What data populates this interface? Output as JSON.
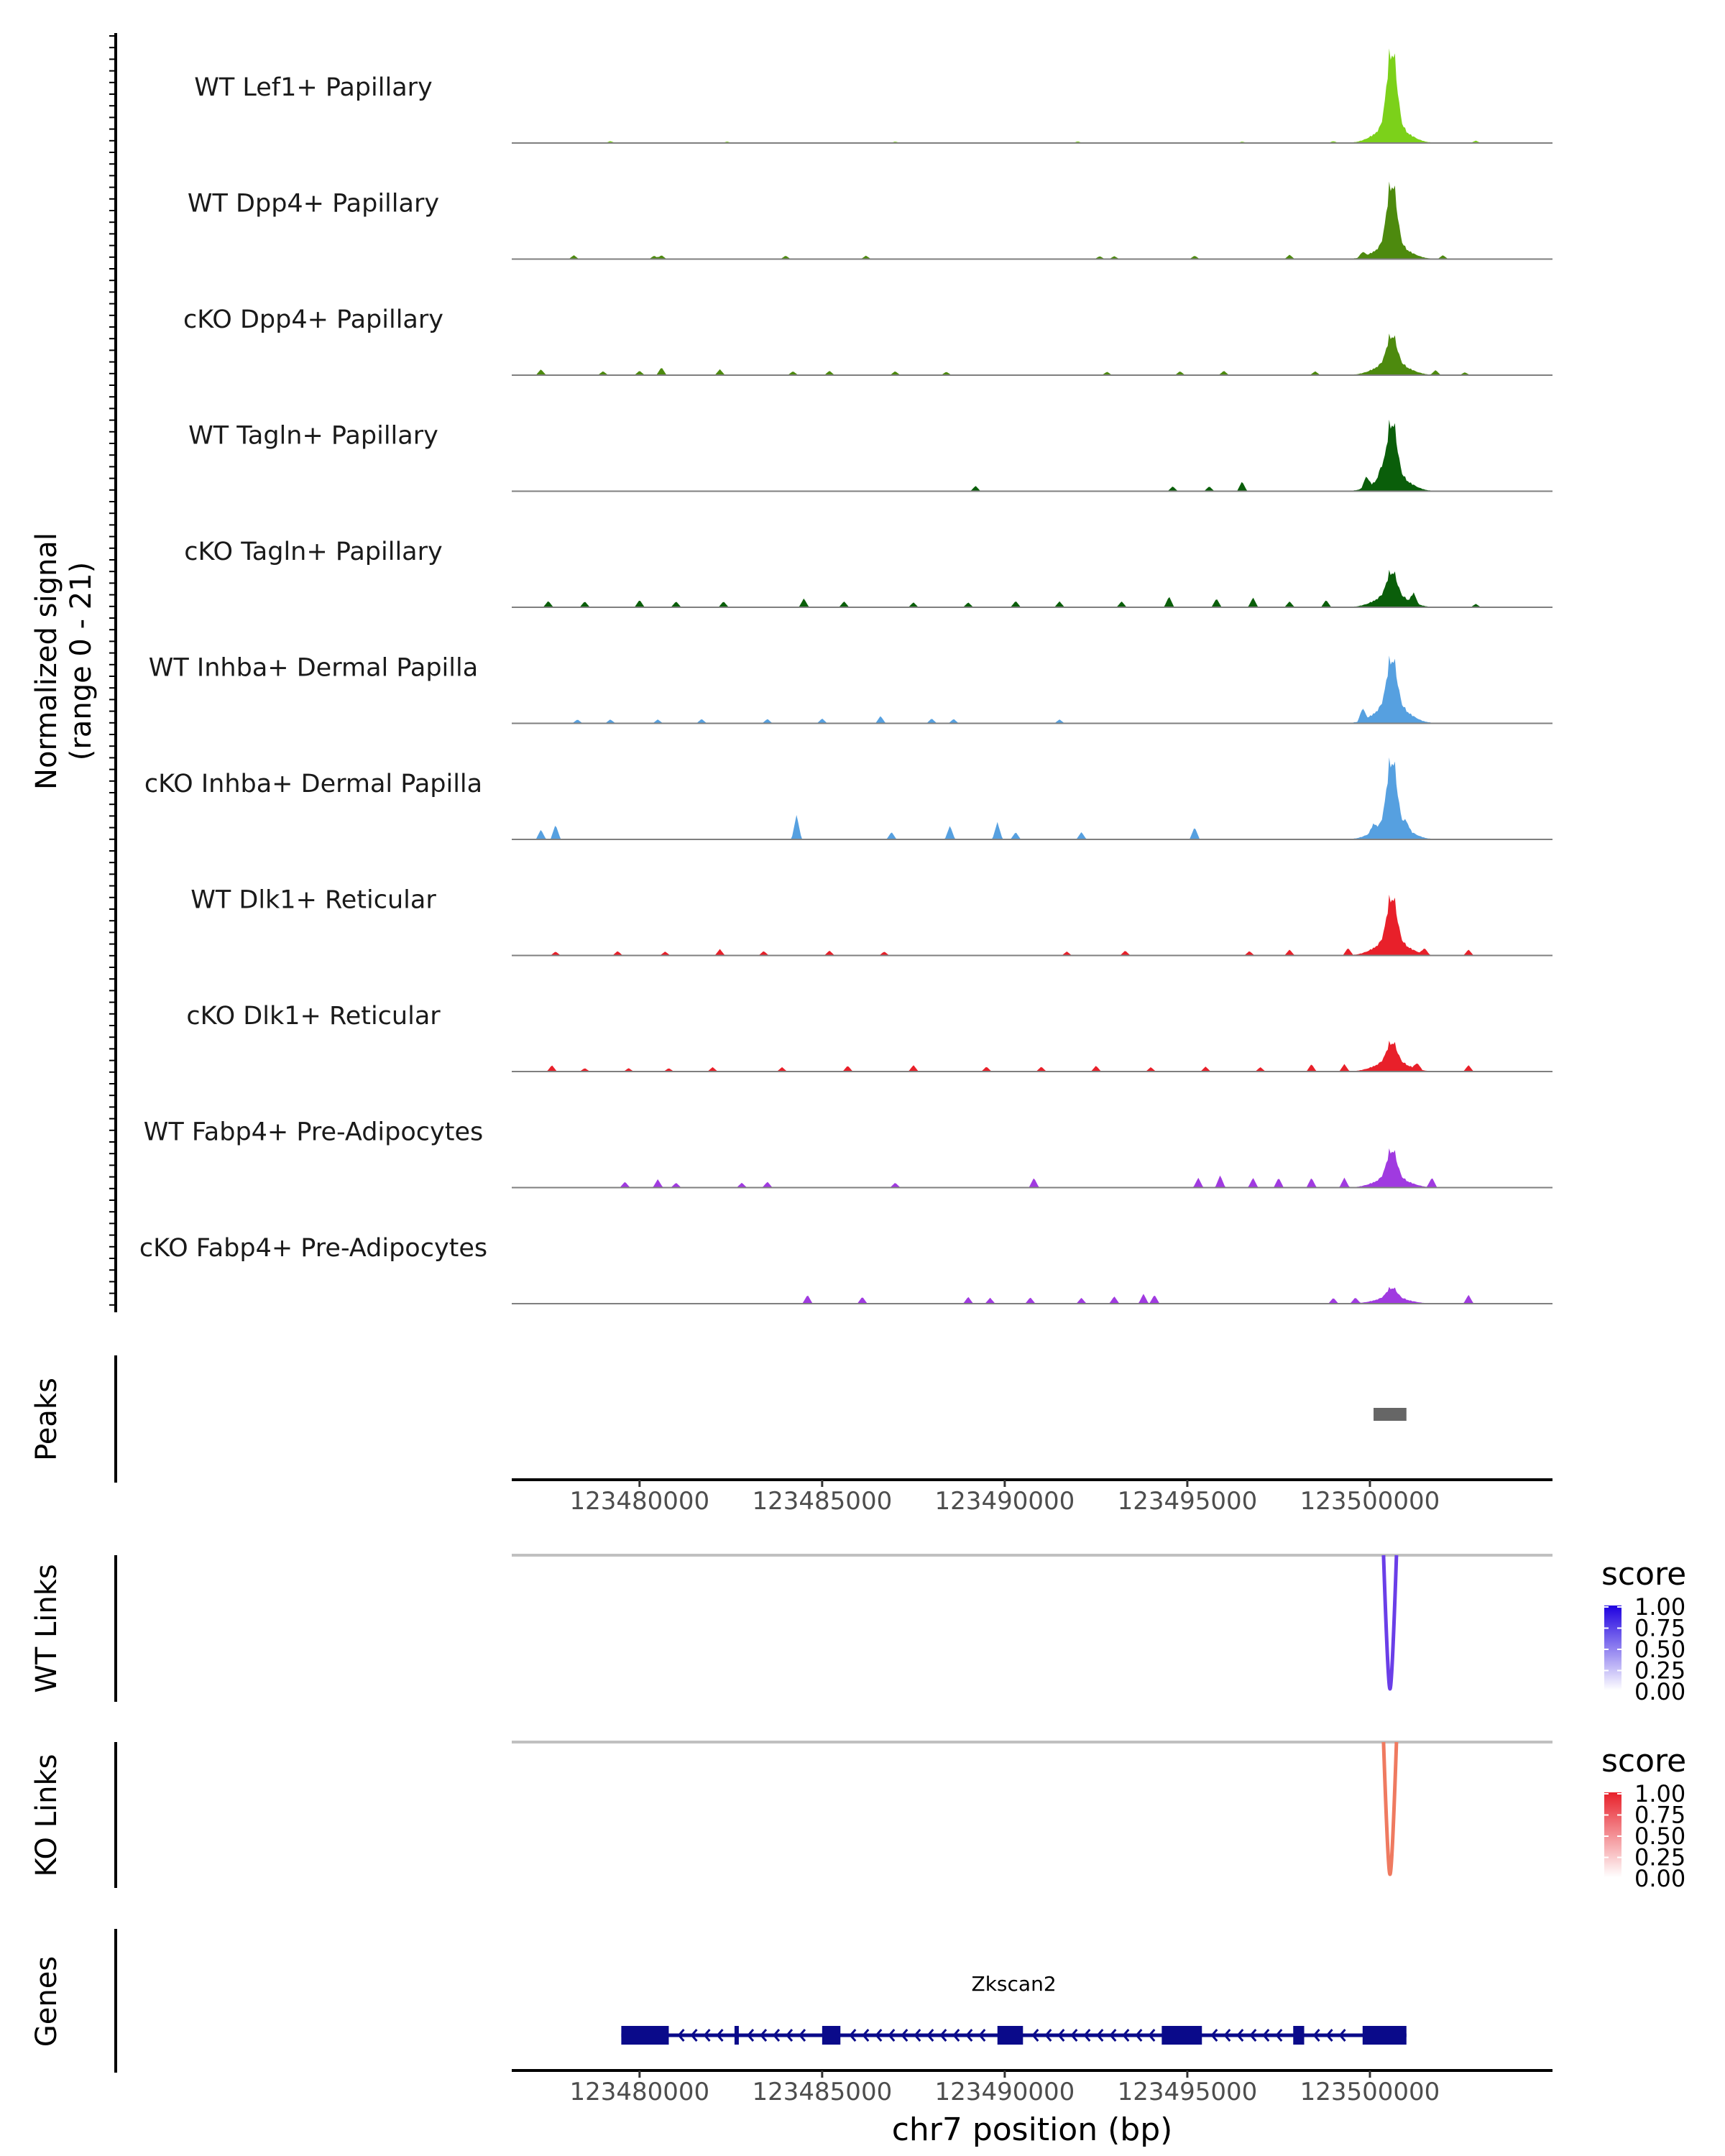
{
  "chart_data": {
    "type": "area",
    "title": "",
    "ylabel_line1": "Normalized signal",
    "ylabel_line2": "(range 0 - 21)",
    "xlabel": "chr7 position (bp)",
    "x_range": [
      123476500,
      123505000
    ],
    "x_ticks": [
      {
        "value": 123480000,
        "label": "123480000"
      },
      {
        "value": 123485000,
        "label": "123485000"
      },
      {
        "value": 123490000,
        "label": "123490000"
      },
      {
        "value": 123495000,
        "label": "123495000"
      },
      {
        "value": 123500000,
        "label": "123500000"
      }
    ],
    "signal_ylim": [
      0,
      21
    ],
    "tracks": [
      {
        "name": "WT Lef1+ Papillary",
        "color": "#7CD11A",
        "peak": 18.0,
        "shoulder": 4.0,
        "noise": [
          [
            123479200,
            0.4
          ],
          [
            123482400,
            0.3
          ],
          [
            123487000,
            0.3
          ],
          [
            123492000,
            0.35
          ],
          [
            123496500,
            0.3
          ],
          [
            123499000,
            0.4
          ],
          [
            123502900,
            0.5
          ]
        ]
      },
      {
        "name": "WT Dpp4+ Papillary",
        "color": "#4D8A0E",
        "peak": 14.5,
        "shoulder": 3.5,
        "noise": [
          [
            123478200,
            0.8
          ],
          [
            123480400,
            0.7
          ],
          [
            123480600,
            0.8
          ],
          [
            123484000,
            0.7
          ],
          [
            123486200,
            0.7
          ],
          [
            123492600,
            0.6
          ],
          [
            123493000,
            0.6
          ],
          [
            123495200,
            0.7
          ],
          [
            123497800,
            0.9
          ],
          [
            123499800,
            1.0
          ],
          [
            123502000,
            0.8
          ]
        ]
      },
      {
        "name": "cKO Dpp4+ Papillary",
        "color": "#4D8A0E",
        "peak": 6.5,
        "shoulder": 3.0,
        "noise": [
          [
            123477300,
            1.2
          ],
          [
            123479000,
            0.8
          ],
          [
            123480000,
            0.9
          ],
          [
            123480600,
            1.6
          ],
          [
            123482200,
            1.2
          ],
          [
            123484200,
            0.8
          ],
          [
            123485200,
            0.9
          ],
          [
            123487000,
            0.8
          ],
          [
            123488400,
            0.7
          ],
          [
            123492800,
            0.7
          ],
          [
            123494800,
            0.8
          ],
          [
            123496000,
            0.9
          ],
          [
            123498500,
            0.8
          ],
          [
            123501800,
            1.0
          ],
          [
            123502600,
            0.6
          ]
        ]
      },
      {
        "name": "WT Tagln+ Papillary",
        "color": "#0A5E0A",
        "peak": 12.5,
        "shoulder": 4.0,
        "noise": [
          [
            123489200,
            1.1
          ],
          [
            123494600,
            1.0
          ],
          [
            123495600,
            1.0
          ],
          [
            123496500,
            2.0
          ],
          [
            123499900,
            2.2
          ],
          [
            123500300,
            1.5
          ]
        ]
      },
      {
        "name": "cKO Tagln+ Papillary",
        "color": "#0A5E0A",
        "peak": 5.5,
        "shoulder": 3.0,
        "noise": [
          [
            123477500,
            1.3
          ],
          [
            123478500,
            1.2
          ],
          [
            123480000,
            1.5
          ],
          [
            123481000,
            1.2
          ],
          [
            123482300,
            1.2
          ],
          [
            123484500,
            1.8
          ],
          [
            123485600,
            1.2
          ],
          [
            123487500,
            1.0
          ],
          [
            123489000,
            1.0
          ],
          [
            123490300,
            1.3
          ],
          [
            123491500,
            1.2
          ],
          [
            123493200,
            1.2
          ],
          [
            123494500,
            2.2
          ],
          [
            123495800,
            1.8
          ],
          [
            123496800,
            2.0
          ],
          [
            123497800,
            1.2
          ],
          [
            123498800,
            1.5
          ],
          [
            123501200,
            2.0
          ],
          [
            123502900,
            0.7
          ]
        ]
      },
      {
        "name": "WT Inhba+ Dermal Papilla",
        "color": "#56A0E0",
        "peak": 11.0,
        "shoulder": 4.5,
        "noise": [
          [
            123478300,
            0.8
          ],
          [
            123479200,
            0.8
          ],
          [
            123480500,
            0.8
          ],
          [
            123481700,
            0.9
          ],
          [
            123483500,
            0.9
          ],
          [
            123485000,
            1.0
          ],
          [
            123486600,
            1.5
          ],
          [
            123488000,
            1.0
          ],
          [
            123488600,
            0.9
          ],
          [
            123491500,
            0.8
          ],
          [
            123499800,
            2.5
          ]
        ]
      },
      {
        "name": "cKO Inhba+ Dermal Papilla",
        "color": "#56A0E0",
        "peak": 15.0,
        "shoulder": 4.0,
        "noise": [
          [
            123477300,
            2.0
          ],
          [
            123477700,
            3.0
          ],
          [
            123484300,
            5.0
          ],
          [
            123486900,
            1.5
          ],
          [
            123488500,
            2.8
          ],
          [
            123489800,
            3.5
          ],
          [
            123490300,
            1.5
          ],
          [
            123492100,
            1.5
          ],
          [
            123495200,
            2.5
          ],
          [
            123500100,
            1.5
          ],
          [
            123501000,
            1.5
          ]
        ]
      },
      {
        "name": "WT Dlk1+ Reticular",
        "color": "#E8202A",
        "peak": 10.5,
        "shoulder": 3.5,
        "noise": [
          [
            123477700,
            0.8
          ],
          [
            123479400,
            0.9
          ],
          [
            123480700,
            0.8
          ],
          [
            123482200,
            1.3
          ],
          [
            123483400,
            0.9
          ],
          [
            123485200,
            1.0
          ],
          [
            123486700,
            0.8
          ],
          [
            123491700,
            0.8
          ],
          [
            123493300,
            1.0
          ],
          [
            123496700,
            0.9
          ],
          [
            123497800,
            1.2
          ],
          [
            123499400,
            1.5
          ],
          [
            123501500,
            1.2
          ],
          [
            123502700,
            1.2
          ]
        ]
      },
      {
        "name": "cKO Dlk1+ Reticular",
        "color": "#E8202A",
        "peak": 4.5,
        "shoulder": 2.5,
        "noise": [
          [
            123477600,
            1.3
          ],
          [
            123478500,
            0.7
          ],
          [
            123479700,
            0.7
          ],
          [
            123480800,
            0.7
          ],
          [
            123482000,
            0.9
          ],
          [
            123483900,
            0.9
          ],
          [
            123485700,
            1.2
          ],
          [
            123487500,
            1.3
          ],
          [
            123489500,
            1.0
          ],
          [
            123491000,
            1.0
          ],
          [
            123492500,
            1.2
          ],
          [
            123494000,
            0.9
          ],
          [
            123495500,
            1.0
          ],
          [
            123497000,
            0.9
          ],
          [
            123498400,
            1.5
          ],
          [
            123499300,
            1.5
          ],
          [
            123501300,
            1.2
          ],
          [
            123502700,
            1.3
          ]
        ]
      },
      {
        "name": "WT Fabp4+ Pre-Adipocytes",
        "color": "#A03AE0",
        "peak": 6.5,
        "shoulder": 2.5,
        "noise": [
          [
            123479600,
            1.2
          ],
          [
            123480500,
            1.7
          ],
          [
            123481000,
            1.0
          ],
          [
            123482800,
            1.0
          ],
          [
            123483500,
            1.2
          ],
          [
            123487000,
            1.0
          ],
          [
            123490800,
            2.0
          ],
          [
            123495300,
            2.0
          ],
          [
            123495900,
            2.5
          ],
          [
            123496800,
            2.0
          ],
          [
            123497500,
            2.0
          ],
          [
            123498400,
            2.0
          ],
          [
            123499300,
            2.0
          ],
          [
            123501700,
            2.0
          ]
        ]
      },
      {
        "name": "cKO Fabp4+ Pre-Adipocytes",
        "color": "#A03AE0",
        "peak": 2.3,
        "shoulder": 1.5,
        "noise": [
          [
            123484600,
            1.8
          ],
          [
            123486100,
            1.4
          ],
          [
            123489000,
            1.4
          ],
          [
            123489600,
            1.2
          ],
          [
            123490700,
            1.3
          ],
          [
            123492100,
            1.2
          ],
          [
            123493000,
            1.5
          ],
          [
            123493800,
            2.0
          ],
          [
            123494100,
            1.8
          ],
          [
            123499000,
            1.2
          ],
          [
            123499600,
            1.2
          ],
          [
            123502700,
            1.8
          ]
        ]
      }
    ],
    "peak_center": 123500600,
    "peaks_label": "Peaks",
    "peaks": [
      {
        "start": 123500100,
        "end": 123501000
      }
    ],
    "wt_links": {
      "label": "WT Links",
      "center": 123500550,
      "score": 0.85,
      "color": "#6A3EE8"
    },
    "ko_links": {
      "label": "KO Links",
      "center": 123500550,
      "score": 0.6,
      "color": "#EF7A60"
    },
    "legend_wt": {
      "title": "score",
      "ticks": [
        "1.00",
        "0.75",
        "0.50",
        "0.25",
        "0.00"
      ],
      "color": "#1E00E0"
    },
    "legend_ko": {
      "title": "score",
      "ticks": [
        "1.00",
        "0.75",
        "0.50",
        "0.25",
        "0.00"
      ],
      "color": "#E8202A"
    },
    "genes_label": "Genes",
    "gene": {
      "name": "Zkscan2",
      "start": 123479500,
      "end": 123501000,
      "color": "#0A0A8A",
      "exons": [
        [
          123479500,
          123480800
        ],
        [
          123482600,
          123482700
        ],
        [
          123485000,
          123485500
        ],
        [
          123489800,
          123490500
        ],
        [
          123494300,
          123495400
        ],
        [
          123497900,
          123498200
        ],
        [
          123499800,
          123501000
        ]
      ]
    }
  }
}
